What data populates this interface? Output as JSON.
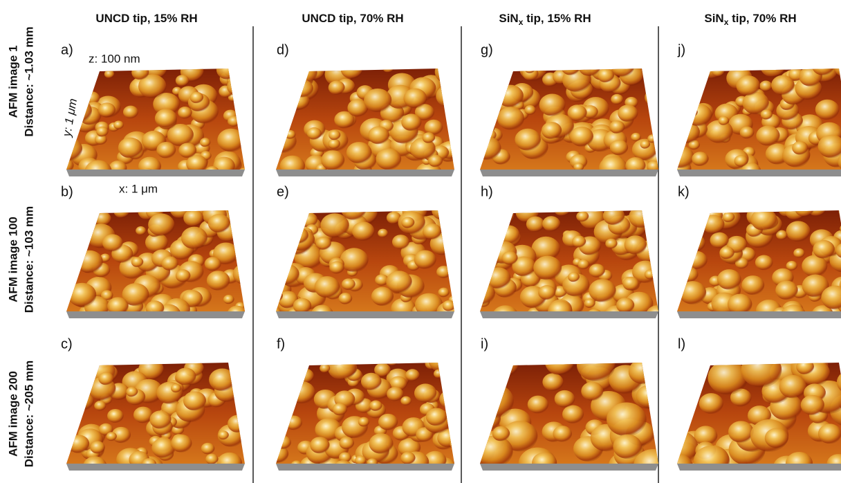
{
  "columns": [
    {
      "text": "UNCD tip, 15% RH"
    },
    {
      "text": "UNCD tip,  70% RH"
    },
    {
      "text": "SiN",
      "subscript": "x",
      "suffix": " tip, 15% RH"
    },
    {
      "text": "SiN",
      "subscript": "x",
      "suffix": " tip, 70% RH"
    }
  ],
  "rows": [
    {
      "title": "AFM image 1",
      "subtitle": "Distance: ~1.03 mm"
    },
    {
      "title": "AFM image 100",
      "subtitle": "Distance: ~103 mm"
    },
    {
      "title": "AFM image 200",
      "subtitle": "Distance: ~205 mm"
    }
  ],
  "panels": [
    [
      "a)",
      "d)",
      "g)",
      "j)"
    ],
    [
      "b)",
      "e)",
      "h)",
      "k)"
    ],
    [
      "c)",
      "f)",
      "i)",
      "l)"
    ]
  ],
  "axes": {
    "z": "z: 100 nm",
    "y": "y: 1 μm",
    "x": "x: 1 μm"
  }
}
